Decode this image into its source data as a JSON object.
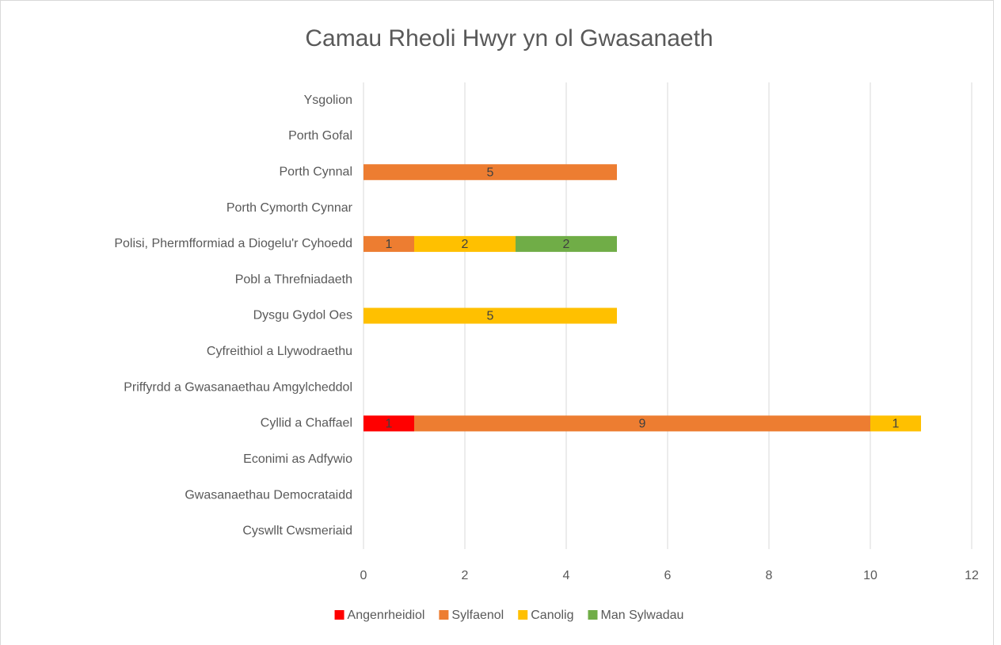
{
  "chart_data": {
    "type": "stacked-barh",
    "title": "Camau Rheoli Hwyr yn ol Gwasanaeth",
    "categories": [
      "Ysgolion",
      "Porth Gofal",
      "Porth Cynnal",
      "Porth Cymorth Cynnar",
      "Polisi, Phermfformiad a Diogelu'r Cyhoedd",
      "Pobl a Threfniadaeth",
      "Dysgu Gydol Oes",
      "Cyfreithiol a Llywodraethu",
      "Priffyrdd a Gwasanaethau Amgylcheddol",
      "Cyllid a Chaffael",
      "Econimi as Adfywio",
      "Gwasanaethau Democrataidd",
      "Cyswllt Cwsmeriaid"
    ],
    "series": [
      {
        "name": "Angenrheidiol",
        "color": "#ff0000",
        "values": [
          null,
          null,
          null,
          null,
          null,
          null,
          null,
          null,
          null,
          1,
          null,
          null,
          null
        ]
      },
      {
        "name": "Sylfaenol",
        "color": "#ed7d31",
        "values": [
          null,
          null,
          5,
          null,
          1,
          null,
          null,
          null,
          null,
          9,
          null,
          null,
          null
        ]
      },
      {
        "name": "Canolig",
        "color": "#ffc000",
        "values": [
          null,
          null,
          null,
          null,
          2,
          null,
          5,
          null,
          null,
          1,
          null,
          null,
          null
        ]
      },
      {
        "name": "Man Sylwadau",
        "color": "#70ad47",
        "values": [
          null,
          null,
          null,
          null,
          2,
          null,
          null,
          null,
          null,
          null,
          null,
          null,
          null
        ]
      }
    ],
    "xlim": [
      0,
      12
    ],
    "xticks": [
      0,
      2,
      4,
      6,
      8,
      10,
      12
    ],
    "grid": true,
    "legend": "bottom"
  }
}
